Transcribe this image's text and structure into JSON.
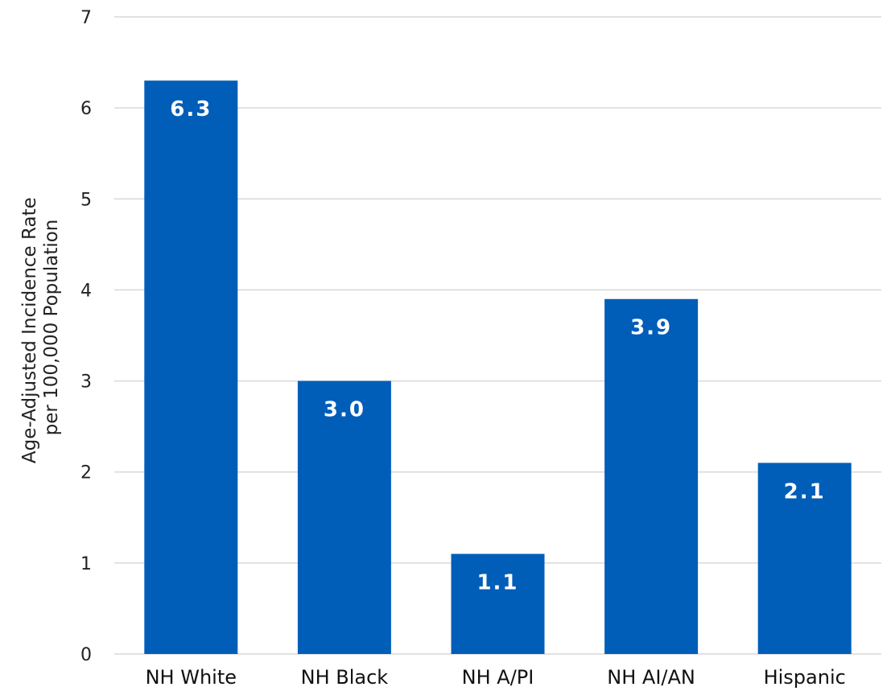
{
  "chart_data": {
    "type": "bar",
    "categories": [
      "NH White",
      "NH Black",
      "NH A/PI",
      "NH AI/AN",
      "Hispanic"
    ],
    "values": [
      6.3,
      3.0,
      1.1,
      3.9,
      2.1
    ],
    "value_labels": [
      "6.3",
      "3.0",
      "1.1",
      "3.9",
      "2.1"
    ],
    "title": "",
    "xlabel": "",
    "ylabel": [
      "Age-Adjusted Incidence Rate",
      "per 100,000 Population"
    ],
    "ylim": [
      0,
      7
    ],
    "yticks": [
      0,
      1,
      2,
      3,
      4,
      5,
      6,
      7
    ],
    "grid": true,
    "legend": "none",
    "colors": {
      "bar": "#005EB8",
      "grid": "#d9d9d9"
    }
  }
}
